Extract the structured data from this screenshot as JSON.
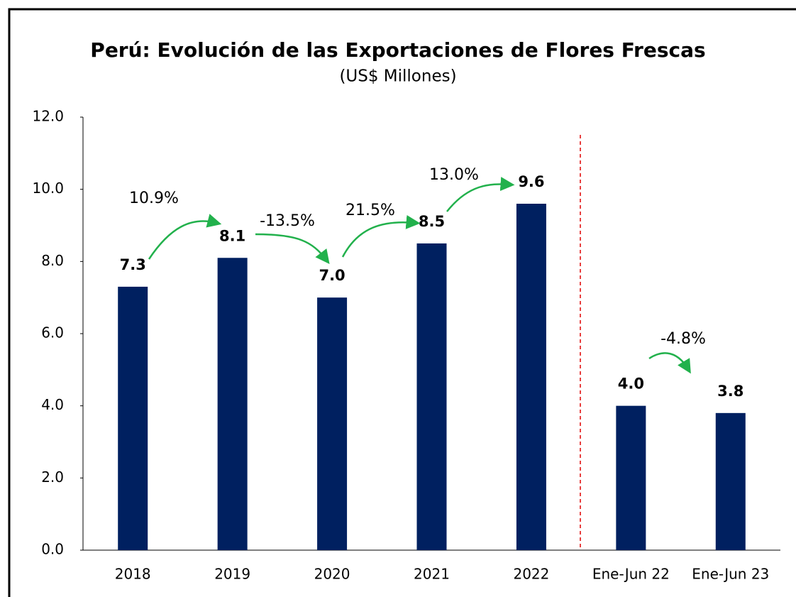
{
  "chart_data": {
    "type": "bar",
    "title": "Perú: Evolución de las Exportaciones de Flores Frescas",
    "subtitle": "(US$ Millones)",
    "categories": [
      "2018",
      "2019",
      "2020",
      "2021",
      "2022",
      "Ene-Jun 22",
      "Ene-Jun 23"
    ],
    "values": [
      7.3,
      8.1,
      7.0,
      8.5,
      9.6,
      4.0,
      3.8
    ],
    "value_labels": [
      "7.3",
      "8.1",
      "7.0",
      "8.5",
      "9.6",
      "4.0",
      "3.8"
    ],
    "color": "#002060",
    "ylim": [
      0,
      12
    ],
    "yticks": [
      {
        "value": 0,
        "label": "0.0"
      },
      {
        "value": 2,
        "label": "2.0"
      },
      {
        "value": 4,
        "label": "4.0"
      },
      {
        "value": 6,
        "label": "6.0"
      },
      {
        "value": 8,
        "label": "8.0"
      },
      {
        "value": 10,
        "label": "10.0"
      },
      {
        "value": 12,
        "label": "12.0"
      }
    ],
    "annotations": [
      "10.9%",
      "-13.5%",
      "21.5%",
      "13.0%",
      "-4.8%"
    ]
  }
}
